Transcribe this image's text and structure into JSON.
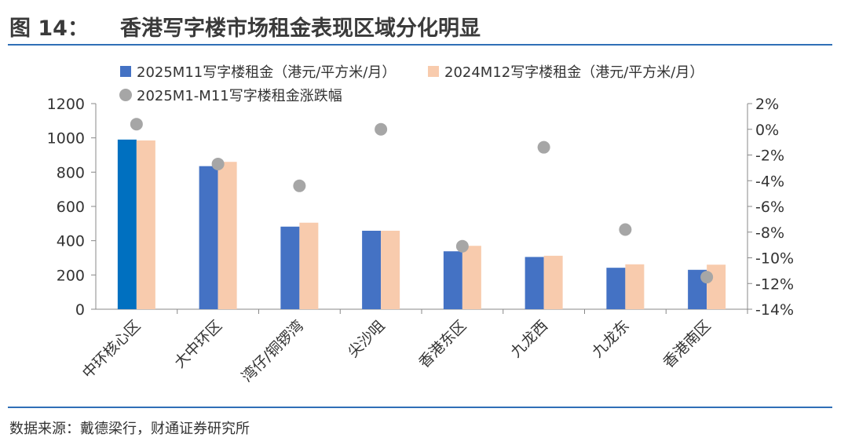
{
  "figure": {
    "label": "图 14：",
    "title": "香港写字楼市场租金表现区域分化明显",
    "source": "数据来源：戴德梁行，财通证券研究所"
  },
  "chart_data": {
    "type": "bar",
    "categories": [
      "中环核心区",
      "大中环区",
      "湾仔/铜锣湾",
      "尖沙咀",
      "香港东区",
      "九龙西",
      "九龙东",
      "香港南区"
    ],
    "series": [
      {
        "name": "2025M11写字楼租金（港元/平方米/月）",
        "type": "bar",
        "axis": "left",
        "values": [
          990,
          835,
          482,
          458,
          338,
          305,
          242,
          230
        ],
        "color": "#4472c4",
        "highlight": {
          "index": 0,
          "color": "#0070c0"
        }
      },
      {
        "name": "2024M12写字楼租金（港元/平方米/月）",
        "type": "bar",
        "axis": "left",
        "values": [
          985,
          860,
          505,
          458,
          370,
          312,
          262,
          260
        ],
        "color": "#f8cbad"
      },
      {
        "name": "2025M1-M11写字楼租金涨跌幅",
        "type": "scatter",
        "axis": "right",
        "values": [
          0.4,
          -2.7,
          -4.4,
          0.0,
          -9.1,
          -1.4,
          -7.8,
          -11.5
        ],
        "color": "#a6a6a6"
      }
    ],
    "y_left": {
      "min": 0,
      "max": 1200,
      "step": 200,
      "ticks": [
        "0",
        "200",
        "400",
        "600",
        "800",
        "1000",
        "1200"
      ]
    },
    "y_right": {
      "min": -14,
      "max": 2,
      "step": 2,
      "unit": "%",
      "ticks": [
        "-14%",
        "-12%",
        "-10%",
        "-8%",
        "-6%",
        "-4%",
        "-2%",
        "0%",
        "2%"
      ]
    },
    "legend": {
      "position": "top"
    }
  }
}
